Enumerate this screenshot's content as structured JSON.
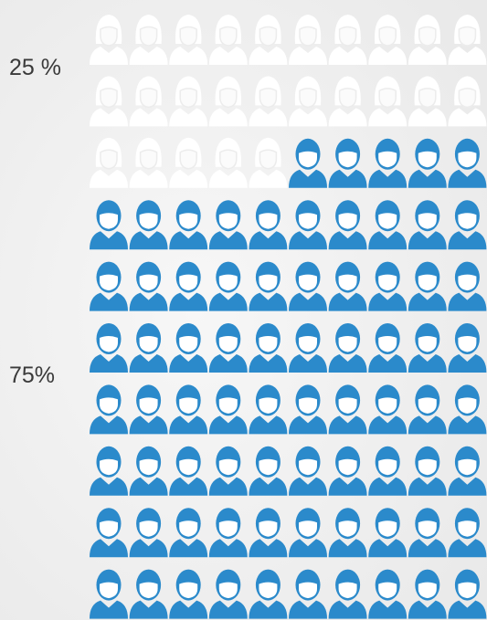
{
  "chart_data": {
    "type": "pictograph",
    "values": [
      25,
      75
    ],
    "value_labels": [
      "25 %",
      "75%"
    ],
    "colors": [
      "#ffffff",
      "#2b8acb"
    ],
    "columns": 10
  }
}
